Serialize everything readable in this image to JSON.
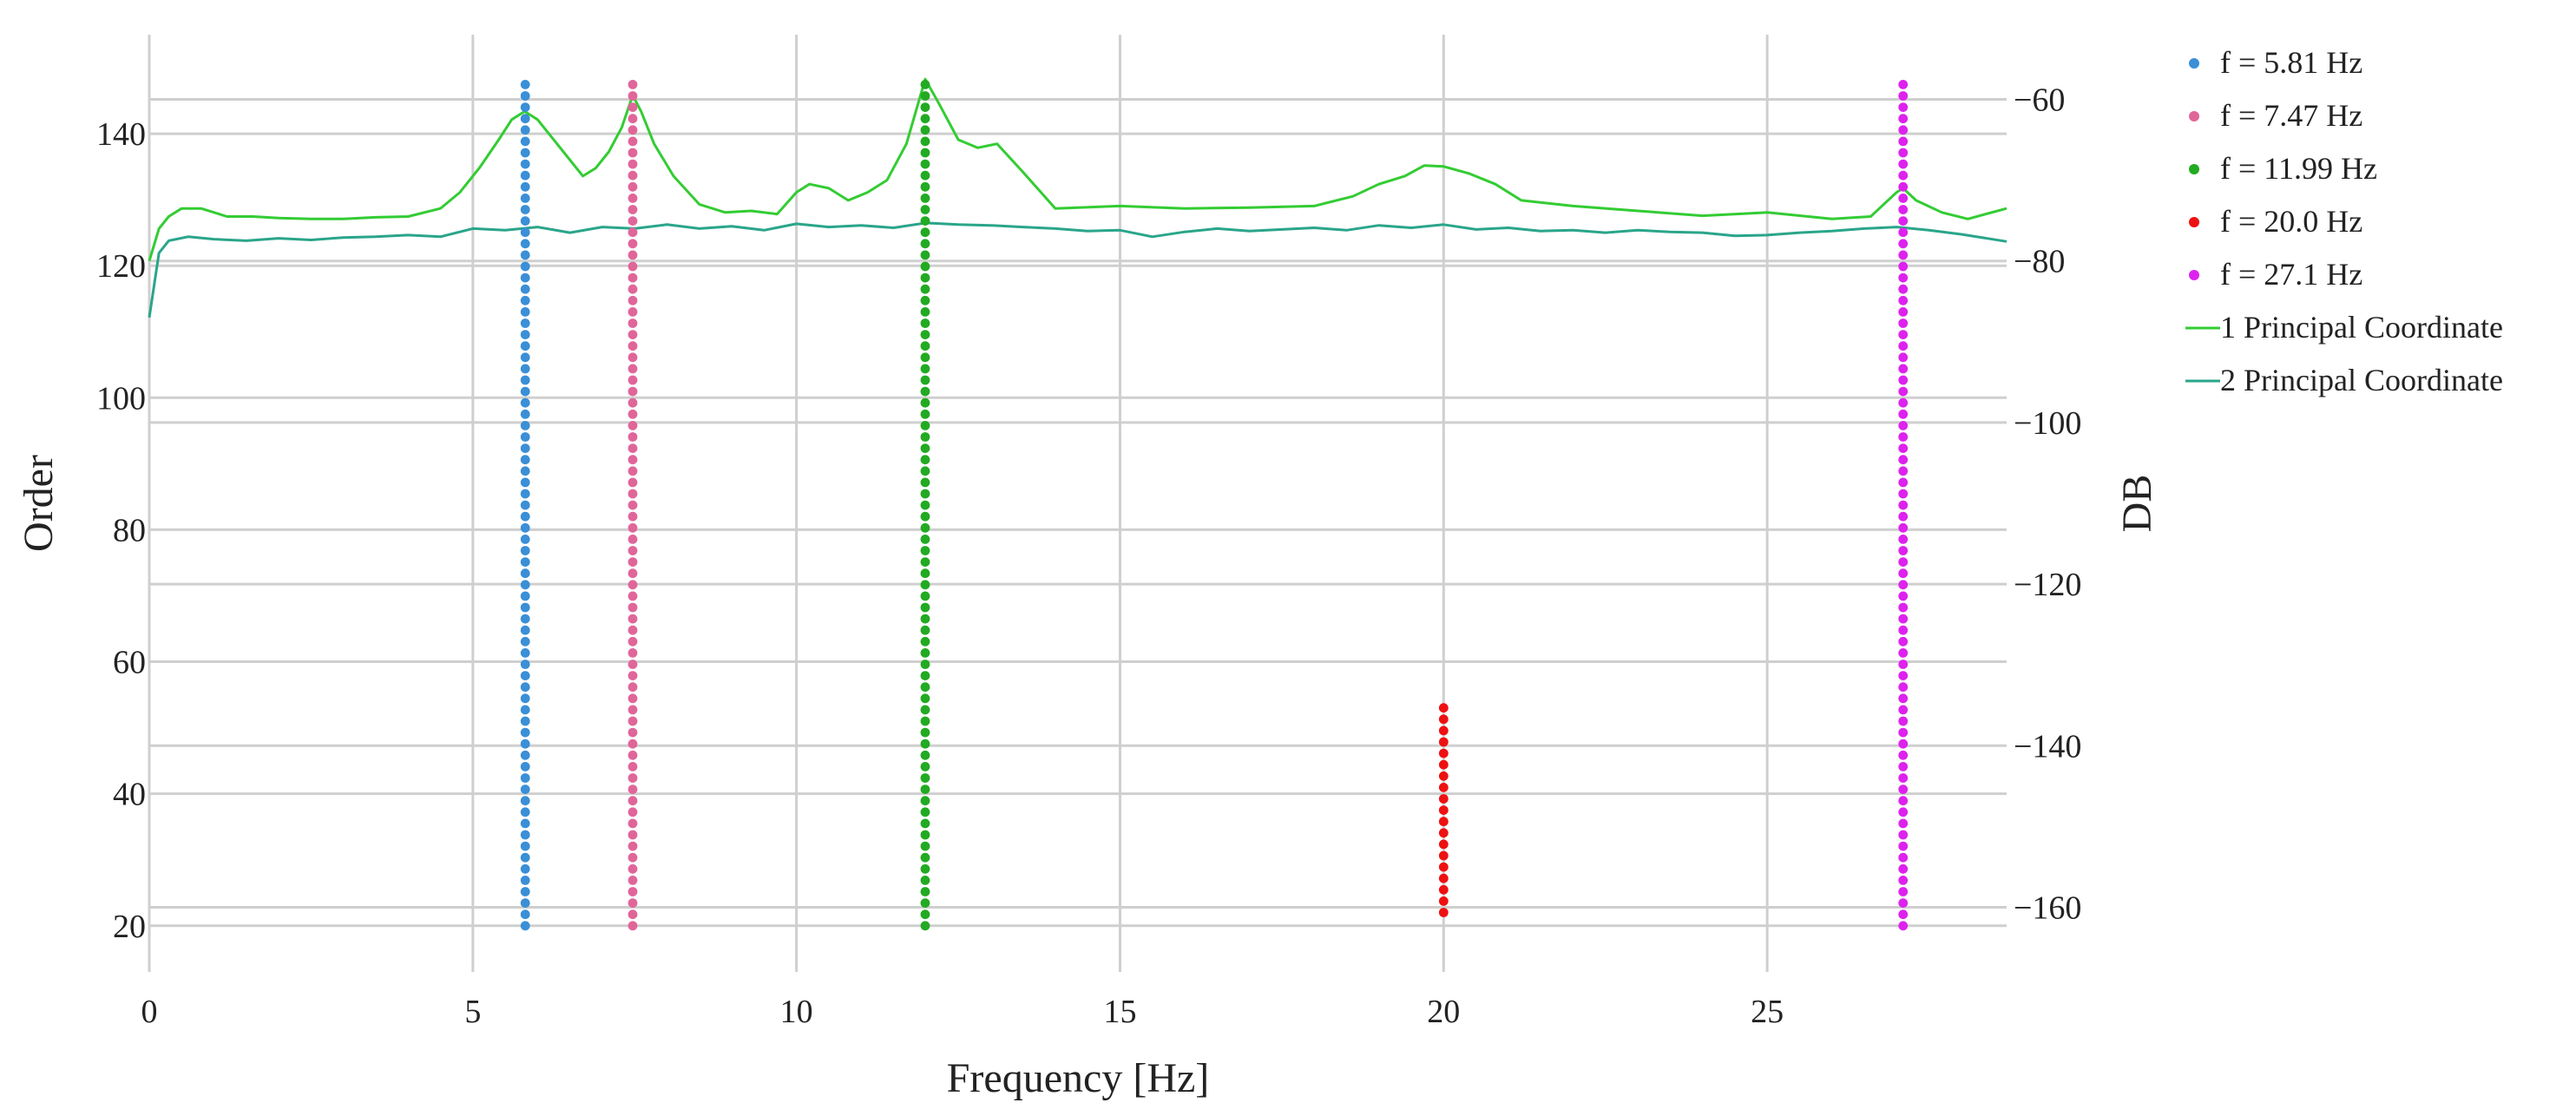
{
  "chart_data": {
    "type": "scatter",
    "xlabel": "Frequency [Hz]",
    "ylabel": "Order",
    "y2label": "DB",
    "xlim": [
      0,
      28.7
    ],
    "ylim": [
      13,
      155
    ],
    "y2lim": [
      -168,
      -52
    ],
    "x_ticks": [
      0,
      5,
      10,
      15,
      20,
      25
    ],
    "y_ticks": [
      20,
      40,
      60,
      80,
      100,
      120,
      140
    ],
    "y2_ticks": [
      -60,
      -80,
      -100,
      -120,
      -140,
      -160
    ],
    "grid": true,
    "legend_position": "right",
    "scatter_series": [
      {
        "name": "f = 5.81 Hz",
        "x": 5.81,
        "y_range": [
          20,
          148
        ],
        "color": "#3a8fd6"
      },
      {
        "name": "f = 7.47 Hz",
        "x": 7.47,
        "y_range": [
          20,
          148
        ],
        "color": "#e06699"
      },
      {
        "name": "f = 11.99 Hz",
        "x": 11.99,
        "y_range": [
          20,
          148
        ],
        "color": "#22aa22"
      },
      {
        "name": "f = 20.0 Hz",
        "x": 20.0,
        "y_range": [
          22,
          54
        ],
        "color": "#ee1111"
      },
      {
        "name": "f = 27.1 Hz",
        "x": 27.1,
        "y_range": [
          20,
          148
        ],
        "color": "#dd22ee"
      }
    ],
    "line_series": [
      {
        "name": "1 Principal Coordinate",
        "color": "#33cc33",
        "x": [
          0,
          0.15,
          0.3,
          0.5,
          0.8,
          1.2,
          1.6,
          2,
          2.5,
          3,
          3.5,
          4,
          4.5,
          4.8,
          5.1,
          5.4,
          5.6,
          5.8,
          6.0,
          6.2,
          6.4,
          6.7,
          6.9,
          7.1,
          7.3,
          7.47,
          7.6,
          7.8,
          8.1,
          8.5,
          8.9,
          9.3,
          9.7,
          10.0,
          10.2,
          10.5,
          10.8,
          11.1,
          11.4,
          11.7,
          11.99,
          12.2,
          12.5,
          12.8,
          13.1,
          13.5,
          14.0,
          15,
          16,
          17,
          18,
          18.6,
          19.0,
          19.4,
          19.7,
          20.0,
          20.4,
          20.8,
          21.2,
          22,
          23,
          24,
          25,
          26,
          26.6,
          27.0,
          27.1,
          27.3,
          27.7,
          28.1,
          28.7
        ],
        "y": [
          -80,
          -76,
          -74.5,
          -73.5,
          -73.5,
          -74.5,
          -74.5,
          -74.7,
          -74.8,
          -74.8,
          -74.6,
          -74.5,
          -73.5,
          -71.5,
          -68.5,
          -65,
          -62.5,
          -61.5,
          -62.5,
          -64.5,
          -66.5,
          -69.5,
          -68.5,
          -66.5,
          -63.5,
          -59.5,
          -61.5,
          -65.5,
          -69.5,
          -73,
          -74,
          -73.8,
          -74.2,
          -71.5,
          -70.5,
          -71,
          -72.5,
          -71.5,
          -70,
          -65.5,
          -57.5,
          -60.5,
          -65,
          -66,
          -65.5,
          -69,
          -73.5,
          -73.2,
          -73.5,
          -73.4,
          -73.2,
          -72,
          -70.5,
          -69.5,
          -68.2,
          -68.3,
          -69.2,
          -70.5,
          -72.5,
          -73.2,
          -73.8,
          -74.4,
          -74,
          -74.8,
          -74.5,
          -71.5,
          -71,
          -72.5,
          -74,
          -74.8,
          -73.5
        ]
      },
      {
        "name": "2 Principal Coordinate",
        "color": "#2aa58a",
        "x": [
          0,
          0.15,
          0.3,
          0.6,
          1,
          1.5,
          2,
          2.5,
          3,
          3.5,
          4,
          4.5,
          5,
          5.5,
          6,
          6.5,
          7,
          7.5,
          8,
          8.5,
          9,
          9.5,
          10,
          10.5,
          11,
          11.5,
          12,
          12.5,
          13,
          13.5,
          14,
          14.5,
          15,
          15.5,
          16,
          16.5,
          17,
          17.5,
          18,
          18.5,
          19,
          19.5,
          20,
          20.5,
          21,
          21.5,
          22,
          22.5,
          23,
          23.5,
          24,
          24.5,
          25,
          25.5,
          26,
          26.5,
          27,
          27.5,
          28,
          28.7
        ],
        "y": [
          -87,
          -79,
          -77.5,
          -77,
          -77.3,
          -77.5,
          -77.2,
          -77.4,
          -77.1,
          -77,
          -76.8,
          -77,
          -76,
          -76.2,
          -75.8,
          -76.5,
          -75.8,
          -76,
          -75.5,
          -76,
          -75.7,
          -76.2,
          -75.4,
          -75.8,
          -75.6,
          -75.9,
          -75.3,
          -75.5,
          -75.6,
          -75.8,
          -76,
          -76.3,
          -76.2,
          -77,
          -76.4,
          -76,
          -76.3,
          -76.1,
          -75.9,
          -76.2,
          -75.6,
          -75.9,
          -75.5,
          -76.1,
          -75.9,
          -76.3,
          -76.2,
          -76.5,
          -76.2,
          -76.4,
          -76.5,
          -76.9,
          -76.8,
          -76.5,
          -76.3,
          -76,
          -75.8,
          -76.2,
          -76.7,
          -77.6
        ]
      }
    ]
  }
}
